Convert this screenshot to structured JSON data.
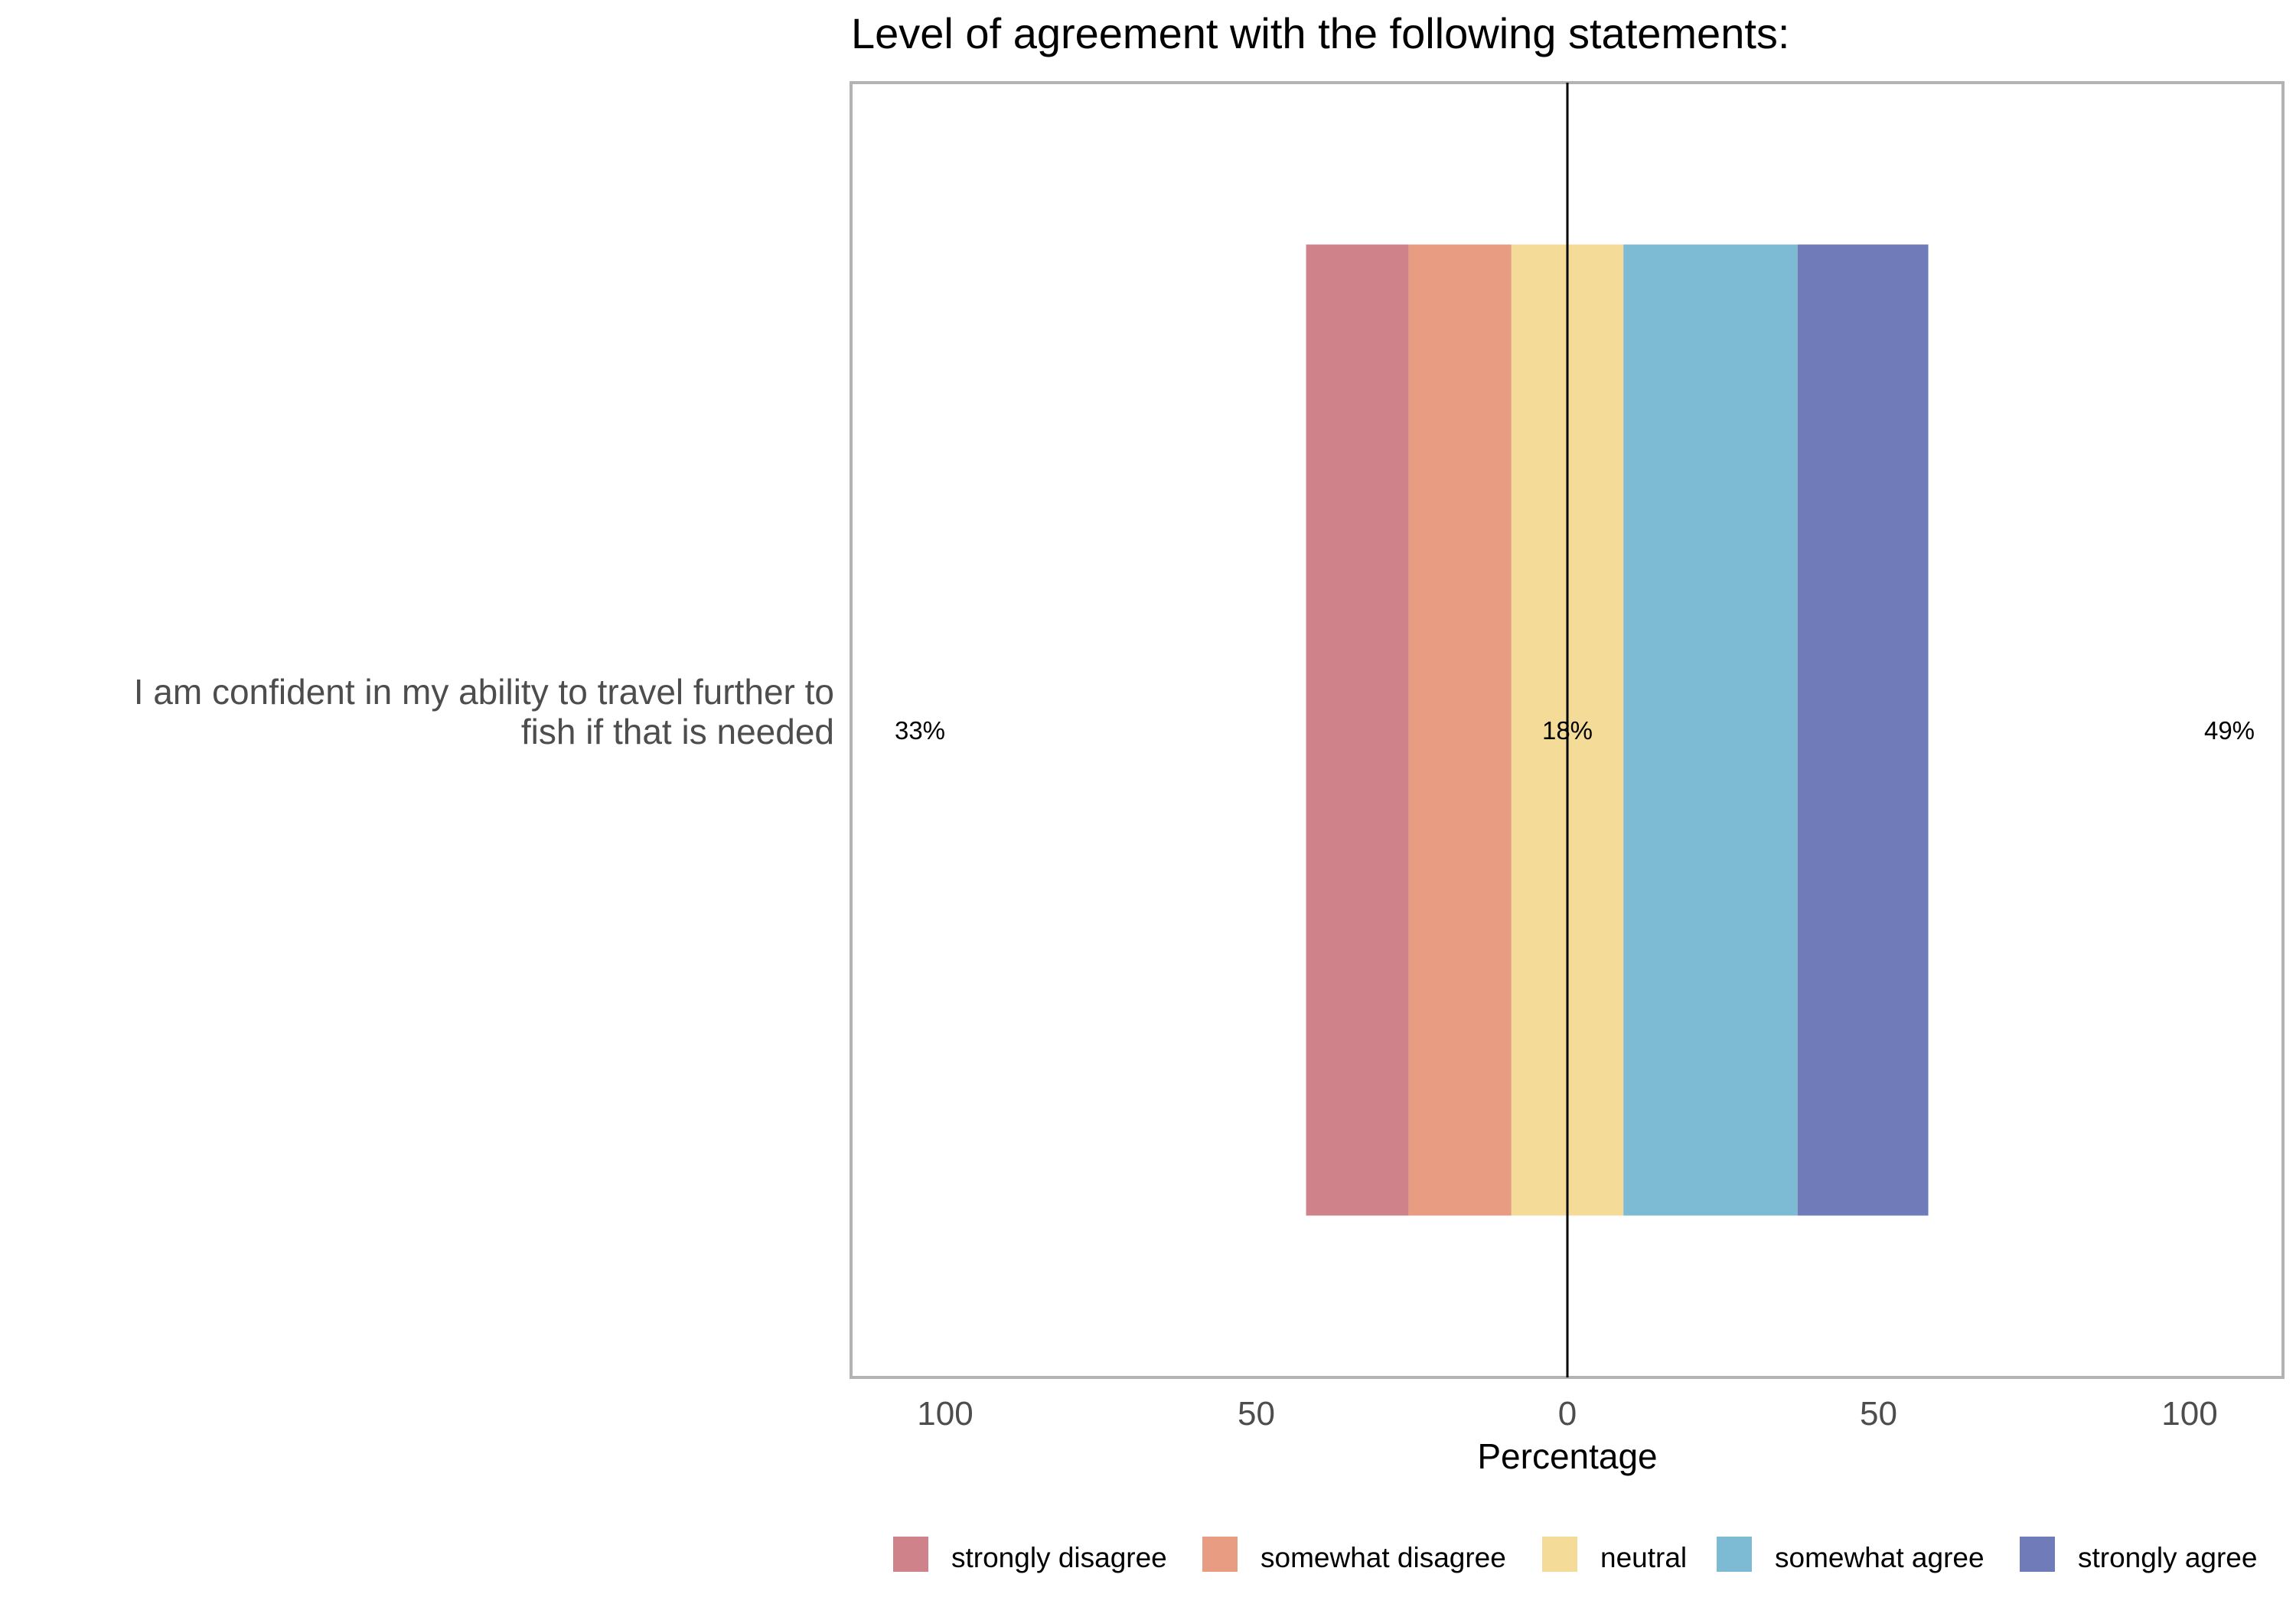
{
  "chart_data": {
    "type": "bar",
    "orientation": "horizontal",
    "stacked": "diverging",
    "title": "Level of agreement with the following statements:",
    "xlabel": "Percentage",
    "ylabel": "",
    "xlim": [
      -115,
      115
    ],
    "x_ticks": [
      -100,
      -50,
      0,
      50,
      100
    ],
    "x_tick_labels": [
      "100",
      "50",
      "0",
      "50",
      "100"
    ],
    "grid": false,
    "legend_position": "bottom",
    "categories": [
      "I am confident in my ability to travel further to fish if that is needed"
    ],
    "category_label_lines": [
      "I am confident in my ability to travel further to",
      "fish if that is needed"
    ],
    "series": [
      {
        "name": "strongly disagree",
        "color": "#d0828a",
        "values": [
          16.5
        ]
      },
      {
        "name": "somewhat disagree",
        "color": "#e89d82",
        "values": [
          16.5
        ]
      },
      {
        "name": "neutral",
        "color": "#f4db97",
        "values": [
          18
        ]
      },
      {
        "name": "somewhat agree",
        "color": "#7cbbd3",
        "values": [
          28
        ]
      },
      {
        "name": "strongly agree",
        "color": "#6f7cb9",
        "values": [
          21
        ]
      }
    ],
    "summary_labels": {
      "disagree": "33%",
      "neutral": "18%",
      "agree": "49%"
    }
  }
}
